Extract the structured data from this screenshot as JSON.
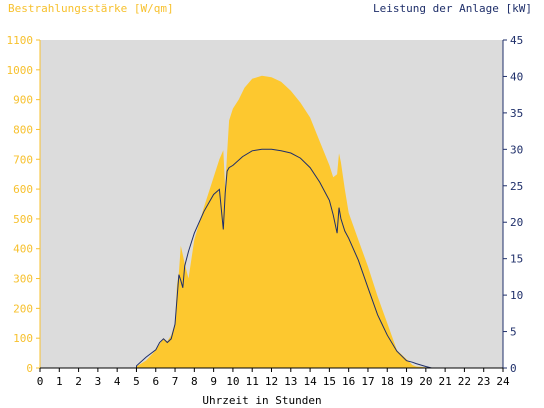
{
  "chart_data": {
    "type": "area",
    "left_axis_title": "Bestrahlungsstärke [W/qm]",
    "right_axis_title": "Leistung der Anlage [kW]",
    "xlabel": "Uhrzeit in Stunden",
    "xlim": [
      0,
      24
    ],
    "ylim_left": [
      0,
      1100
    ],
    "ylim_right": [
      0,
      45
    ],
    "x_ticks": [
      0,
      1,
      2,
      3,
      4,
      5,
      6,
      7,
      8,
      9,
      10,
      11,
      12,
      13,
      14,
      15,
      16,
      17,
      18,
      19,
      20,
      21,
      22,
      23,
      24
    ],
    "left_ticks": [
      0,
      100,
      200,
      300,
      400,
      500,
      600,
      700,
      800,
      900,
      1000,
      1100
    ],
    "right_ticks": [
      0,
      5,
      10,
      15,
      20,
      25,
      30,
      35,
      40,
      45
    ],
    "grid": false,
    "colors": {
      "plot_background": "#dcdcdc",
      "irradiance_fill": "#fdc82f",
      "power_line": "#1f2f6a",
      "left_axis": "#f7c12e",
      "right_axis": "#1f2f6a"
    },
    "series": [
      {
        "axis": "left",
        "x": [
          5.0,
          5.5,
          6.0,
          6.2,
          6.4,
          6.6,
          6.8,
          7.0,
          7.1,
          7.2,
          7.3,
          7.4,
          7.5,
          7.7,
          8.0,
          8.5,
          9.0,
          9.3,
          9.5,
          9.6,
          9.7,
          9.8,
          10.0,
          10.3,
          10.6,
          11.0,
          11.5,
          12.0,
          12.5,
          13.0,
          13.5,
          14.0,
          14.5,
          15.0,
          15.2,
          15.4,
          15.5,
          15.6,
          15.8,
          16.0,
          16.5,
          17.0,
          17.5,
          18.0,
          18.5,
          19.0,
          19.3,
          19.5,
          20.0,
          20.3,
          20.5,
          21.0
        ],
        "y": [
          5,
          25,
          60,
          80,
          100,
          90,
          110,
          150,
          280,
          320,
          410,
          380,
          350,
          300,
          430,
          540,
          640,
          700,
          730,
          600,
          720,
          830,
          870,
          900,
          940,
          970,
          980,
          975,
          960,
          930,
          890,
          840,
          760,
          680,
          640,
          650,
          720,
          690,
          600,
          520,
          430,
          340,
          240,
          150,
          60,
          30,
          10,
          5,
          2,
          0,
          0,
          0
        ]
      },
      {
        "axis": "right",
        "x": [
          5.0,
          5.5,
          6.0,
          6.2,
          6.4,
          6.6,
          6.8,
          7.0,
          7.1,
          7.2,
          7.3,
          7.4,
          7.5,
          7.7,
          8.0,
          8.5,
          9.0,
          9.3,
          9.5,
          9.6,
          9.7,
          9.8,
          10.0,
          10.5,
          11.0,
          11.5,
          12.0,
          12.5,
          13.0,
          13.5,
          14.0,
          14.5,
          15.0,
          15.2,
          15.4,
          15.5,
          15.6,
          15.8,
          16.0,
          16.5,
          17.0,
          17.5,
          18.0,
          18.5,
          19.0,
          19.3,
          19.5,
          20.0,
          20.3,
          20.5,
          21.0
        ],
        "y": [
          0.3,
          1.5,
          2.5,
          3.5,
          4.0,
          3.5,
          4.0,
          6.0,
          9.5,
          12.8,
          12.0,
          11.0,
          14.0,
          16.0,
          18.5,
          21.5,
          23.8,
          24.5,
          19.0,
          24.0,
          27.0,
          27.5,
          27.8,
          29.0,
          29.8,
          30.0,
          30.0,
          29.8,
          29.5,
          28.8,
          27.5,
          25.5,
          23.0,
          21.0,
          18.5,
          22.0,
          20.5,
          18.8,
          17.8,
          14.8,
          11.0,
          7.3,
          4.5,
          2.3,
          1.0,
          0.8,
          0.6,
          0.2,
          0.0,
          0.0,
          0.0
        ]
      }
    ]
  }
}
